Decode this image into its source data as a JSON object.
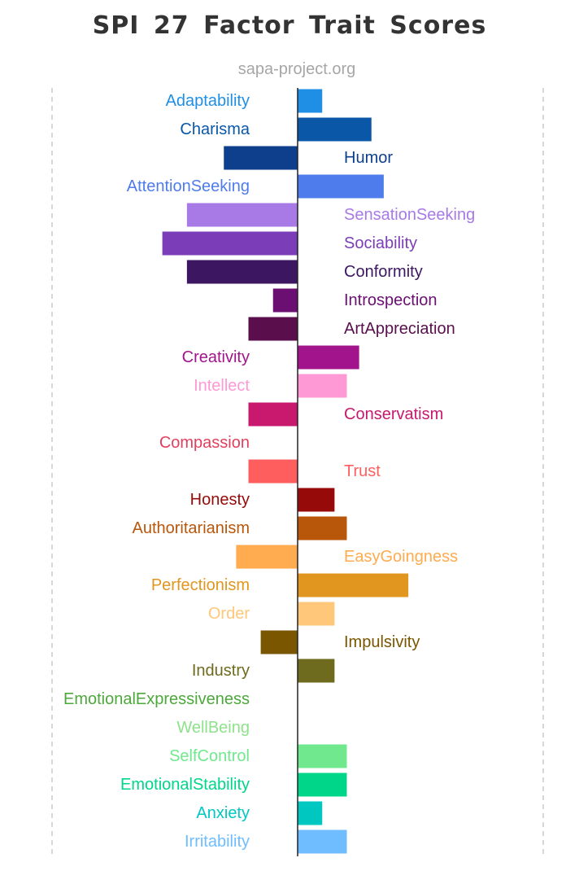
{
  "chart_data": {
    "type": "bar",
    "orientation": "horizontal",
    "title": "SPI 27 Factor Trait Scores",
    "subtitle": "sapa-project.org",
    "xlim": [
      -5,
      5
    ],
    "grid": false,
    "legend": "none",
    "categories": [
      "Adaptability",
      "Charisma",
      "Humor",
      "AttentionSeeking",
      "SensationSeeking",
      "Sociability",
      "Conformity",
      "Introspection",
      "ArtAppreciation",
      "Creativity",
      "Intellect",
      "Conservatism",
      "Compassion",
      "Trust",
      "Honesty",
      "Authoritarianism",
      "EasyGoingness",
      "Perfectionism",
      "Order",
      "Impulsivity",
      "Industry",
      "EmotionalExpressiveness",
      "WellBeing",
      "SelfControl",
      "EmotionalStability",
      "Anxiety",
      "Irritability"
    ],
    "values": [
      0.5,
      1.5,
      -1.5,
      1.75,
      -2.25,
      -2.75,
      -2.25,
      -0.5,
      -1.0,
      1.25,
      1.0,
      -1.0,
      0,
      -1.0,
      0.75,
      1.0,
      -1.25,
      2.25,
      0.75,
      -0.75,
      0.75,
      0,
      0,
      1.0,
      1.0,
      0.5,
      1.0
    ],
    "colors": [
      "#1f8fe5",
      "#0a57a8",
      "#0e3f8c",
      "#4f7cec",
      "#a87ae6",
      "#7b3db8",
      "#3c1660",
      "#6b0f72",
      "#5a0f4c",
      "#a1148c",
      "#ff99d6",
      "#c8196e",
      "#e0405e",
      "#ff5e5e",
      "#960a0a",
      "#b8560a",
      "#ffab4f",
      "#e0961f",
      "#ffc77a",
      "#7a5600",
      "#6e6a1e",
      "#4da83b",
      "#8ee28a",
      "#6fe88e",
      "#00d68a",
      "#00c8c0",
      "#6fbdff"
    ]
  }
}
